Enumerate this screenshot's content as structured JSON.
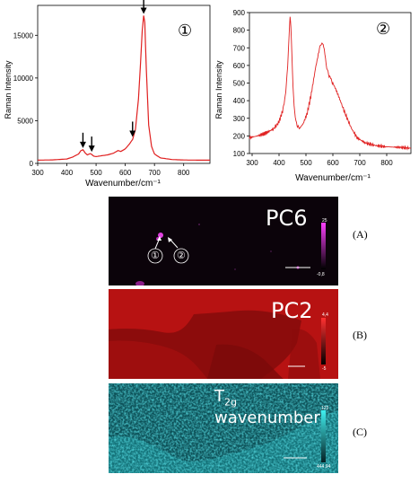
{
  "chart_data": [
    {
      "type": "line",
      "badge": "①",
      "xlabel": "Wavenumber/cm⁻¹",
      "ylabel": "Raman Intensity",
      "xlim": [
        300,
        890
      ],
      "ylim": [
        0,
        18500
      ],
      "xticks": [
        300,
        400,
        500,
        600,
        700,
        800
      ],
      "yticks": [
        0,
        5000,
        10000,
        15000
      ],
      "color": "#e02020",
      "series": [
        {
          "x": [
            300,
            350,
            400,
            420,
            440,
            448,
            455,
            462,
            470,
            480,
            485,
            492,
            500,
            520,
            540,
            560,
            575,
            585,
            600,
            615,
            625,
            635,
            645,
            652,
            658,
            663,
            667,
            672,
            680,
            690,
            700,
            720,
            760,
            800,
            850,
            890
          ],
          "values": [
            380,
            410,
            520,
            750,
            1100,
            1500,
            1600,
            1250,
            1000,
            1150,
            1050,
            850,
            800,
            900,
            1000,
            1200,
            1500,
            1400,
            1700,
            2300,
            2800,
            4000,
            7500,
            11500,
            15500,
            17300,
            16500,
            11000,
            4500,
            2000,
            1100,
            650,
            450,
            400,
            380,
            380
          ]
        }
      ],
      "annotations": [
        {
          "type": "arrow",
          "x": 455,
          "y": 1700
        },
        {
          "type": "arrow",
          "x": 485,
          "y": 1250
        },
        {
          "type": "arrow",
          "x": 625,
          "y": 3000
        },
        {
          "type": "arrow",
          "x": 663,
          "y": 17400
        }
      ]
    },
    {
      "type": "line",
      "badge": "②",
      "xlabel": "Wavenumber/cm⁻¹",
      "ylabel": "Raman Intensity",
      "xlim": [
        290,
        890
      ],
      "ylim": [
        100,
        900
      ],
      "xticks": [
        300,
        400,
        500,
        600,
        700,
        800
      ],
      "yticks": [
        100,
        200,
        300,
        400,
        500,
        600,
        700,
        800,
        900
      ],
      "color": "#e02020",
      "series": [
        {
          "x": [
            290,
            320,
            350,
            380,
            400,
            415,
            425,
            432,
            437,
            441,
            444,
            448,
            452,
            458,
            465,
            475,
            490,
            505,
            520,
            535,
            548,
            555,
            562,
            568,
            575,
            582,
            590,
            600,
            615,
            630,
            650,
            670,
            690,
            720,
            760,
            800,
            850,
            890
          ],
          "values": [
            190,
            200,
            215,
            240,
            280,
            350,
            450,
            600,
            760,
            870,
            830,
            650,
            470,
            340,
            270,
            240,
            270,
            330,
            440,
            580,
            680,
            715,
            730,
            690,
            610,
            560,
            530,
            500,
            450,
            390,
            310,
            240,
            190,
            160,
            145,
            138,
            135,
            130
          ]
        }
      ]
    }
  ],
  "maps": [
    {
      "title": "PC6",
      "label": "(A)",
      "scale_top": "25",
      "scale_bottom": "-0,8",
      "markers": [
        "①",
        "②"
      ],
      "colors": {
        "base": "#0a0208",
        "accent": "#cc22cc"
      }
    },
    {
      "title": "PC2",
      "label": "(B)",
      "scale_top": "4,4",
      "scale_bottom": "-5",
      "colors": {
        "base": "#b01010",
        "accent": "#5a0808"
      }
    },
    {
      "title_main": "T",
      "title_sub": "2g",
      "title_rest": " wavenumber",
      "label": "(C)",
      "scale_top": "123",
      "scale_bottom": "444,94",
      "colors": {
        "base": "#0e4a50",
        "accent": "#30e0e0"
      }
    }
  ]
}
